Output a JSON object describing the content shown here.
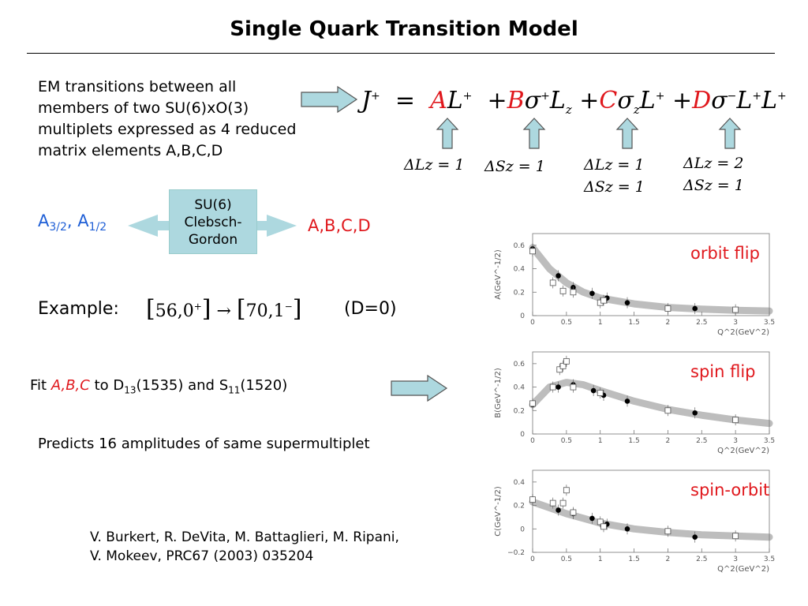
{
  "title": "Single Quark Transition Model",
  "intro_lines": [
    "EM transitions between all",
    "members of two SU(6)xO(3)",
    "multiplets expressed as 4 reduced",
    "matrix elements A,B,C,D"
  ],
  "equation": {
    "lhs": "J",
    "terms": [
      {
        "coef": "A",
        "op": "L",
        "sup": "+"
      },
      {
        "coef": "B",
        "op": "σ",
        "sup": "+",
        "extra": "L",
        "extra_sub": "z"
      },
      {
        "coef": "C",
        "op": "σ",
        "sub": "z",
        "extra": "L",
        "extra_sup": "+"
      },
      {
        "coef": "D",
        "op": "σ",
        "sup": "−",
        "extra": "L",
        "extra_sup": "+",
        "extra2": "L",
        "extra2_sup": "+"
      }
    ],
    "selection_rules": [
      [
        "ΔLz = 1"
      ],
      [
        "ΔSz = 1"
      ],
      [
        "ΔLz = 1",
        "ΔSz = 1"
      ],
      [
        "ΔLz = 2",
        "ΔSz = 1"
      ]
    ]
  },
  "helicity": {
    "a32": "A",
    "a32_sub": "3/2",
    "a12": "A",
    "a12_sub": "1/2",
    "sep": ","
  },
  "clebsch_box": [
    "SU(6)",
    "Clebsch-",
    "Gordon"
  ],
  "reduced": "A,B,C,D",
  "example": {
    "label": "Example:",
    "from": "56,0",
    "from_sup": "+",
    "to": "70,1",
    "to_sup": "−",
    "note": "(D=0)"
  },
  "fit": {
    "prefix": "Fit",
    "params": "A,B,C",
    "mid": "to D",
    "d_sub": "13",
    "d_mass": "(1535) and S",
    "s_sub": "11",
    "s_mass": "(1520)"
  },
  "predicts": "Predicts 16 amplitudes of same supermultiplet",
  "reference": [
    "V. Burkert, R. DeVita, M. Battaglieri, M. Ripani,",
    "V. Mokeev, PRC67 (2003) 035204"
  ],
  "colors": {
    "blue": "#1f5fd6",
    "red": "#e0181d",
    "arrow_fill": "#add8df",
    "band": "#bdbdbd"
  },
  "chart_data": [
    {
      "type": "scatter",
      "title": "orbit flip",
      "ylabel": "A(GeV^-1/2)",
      "xlabel": "Q^2(GeV^2)",
      "xlim": [
        0,
        3.5
      ],
      "ylim": [
        0,
        0.7
      ],
      "xticks": [
        "0",
        "0.5",
        "1",
        "1.5",
        "2",
        "2.5",
        "3",
        "3.5"
      ],
      "yticks": [
        "0",
        "0.2",
        "0.4",
        "0.6"
      ],
      "band": {
        "x": [
          0,
          0.25,
          0.5,
          0.75,
          1,
          1.5,
          2,
          2.5,
          3,
          3.5
        ],
        "y": [
          0.58,
          0.4,
          0.28,
          0.2,
          0.15,
          0.1,
          0.07,
          0.055,
          0.045,
          0.04
        ]
      },
      "series": [
        {
          "marker": "filled-circle",
          "x": [
            0.0,
            0.38,
            0.6,
            0.88,
            1.1,
            1.4,
            2.4
          ],
          "y": [
            0.57,
            0.34,
            0.24,
            0.19,
            0.15,
            0.11,
            0.06
          ]
        },
        {
          "marker": "open-square",
          "x": [
            0.0,
            0.3,
            0.45,
            0.6,
            1.0,
            1.05,
            2.0,
            3.0
          ],
          "y": [
            0.55,
            0.28,
            0.21,
            0.2,
            0.11,
            0.13,
            0.06,
            0.05
          ]
        }
      ]
    },
    {
      "type": "scatter",
      "title": "spin flip",
      "ylabel": "B(GeV^-1/2)",
      "xlabel": "Q^2(GeV^2)",
      "xlim": [
        0,
        3.5
      ],
      "ylim": [
        0,
        0.7
      ],
      "xticks": [
        "0",
        "0.5",
        "1",
        "1.5",
        "2",
        "2.5",
        "3",
        "3.5"
      ],
      "yticks": [
        "0",
        "0.2",
        "0.4",
        "0.6"
      ],
      "band": {
        "x": [
          0,
          0.25,
          0.5,
          0.75,
          1,
          1.5,
          2,
          2.5,
          3,
          3.5
        ],
        "y": [
          0.25,
          0.4,
          0.44,
          0.42,
          0.37,
          0.28,
          0.21,
          0.16,
          0.12,
          0.09
        ]
      },
      "series": [
        {
          "marker": "filled-circle",
          "x": [
            0.0,
            0.38,
            0.6,
            0.9,
            1.05,
            1.4,
            2.4
          ],
          "y": [
            0.25,
            0.4,
            0.42,
            0.37,
            0.33,
            0.28,
            0.18
          ]
        },
        {
          "marker": "open-square",
          "x": [
            0.0,
            0.3,
            0.4,
            0.45,
            0.5,
            0.6,
            1.0,
            2.0,
            3.0
          ],
          "y": [
            0.26,
            0.4,
            0.55,
            0.58,
            0.62,
            0.4,
            0.35,
            0.2,
            0.12
          ]
        }
      ]
    },
    {
      "type": "scatter",
      "title": "spin-orbit",
      "ylabel": "C(GeV^-1/2)",
      "xlabel": "Q^2(GeV^2)",
      "xlim": [
        0,
        3.5
      ],
      "ylim": [
        -0.2,
        0.5
      ],
      "xticks": [
        "0",
        "0.5",
        "1",
        "1.5",
        "2",
        "2.5",
        "3",
        "3.5"
      ],
      "yticks": [
        "−0.2",
        "0",
        "0.2",
        "0.4"
      ],
      "band": {
        "x": [
          0,
          0.25,
          0.5,
          0.75,
          1,
          1.5,
          2,
          2.5,
          3,
          3.5
        ],
        "y": [
          0.23,
          0.18,
          0.13,
          0.09,
          0.05,
          0.0,
          -0.03,
          -0.05,
          -0.06,
          -0.07
        ]
      },
      "series": [
        {
          "marker": "filled-circle",
          "x": [
            0.0,
            0.38,
            0.6,
            0.88,
            1.1,
            1.4,
            2.4
          ],
          "y": [
            0.25,
            0.16,
            0.13,
            0.09,
            0.04,
            0.0,
            -0.07
          ]
        },
        {
          "marker": "open-square",
          "x": [
            0.0,
            0.3,
            0.45,
            0.5,
            0.6,
            1.0,
            1.05,
            2.0,
            3.0
          ],
          "y": [
            0.25,
            0.22,
            0.22,
            0.33,
            0.14,
            0.06,
            0.02,
            -0.02,
            -0.06
          ]
        }
      ]
    }
  ]
}
